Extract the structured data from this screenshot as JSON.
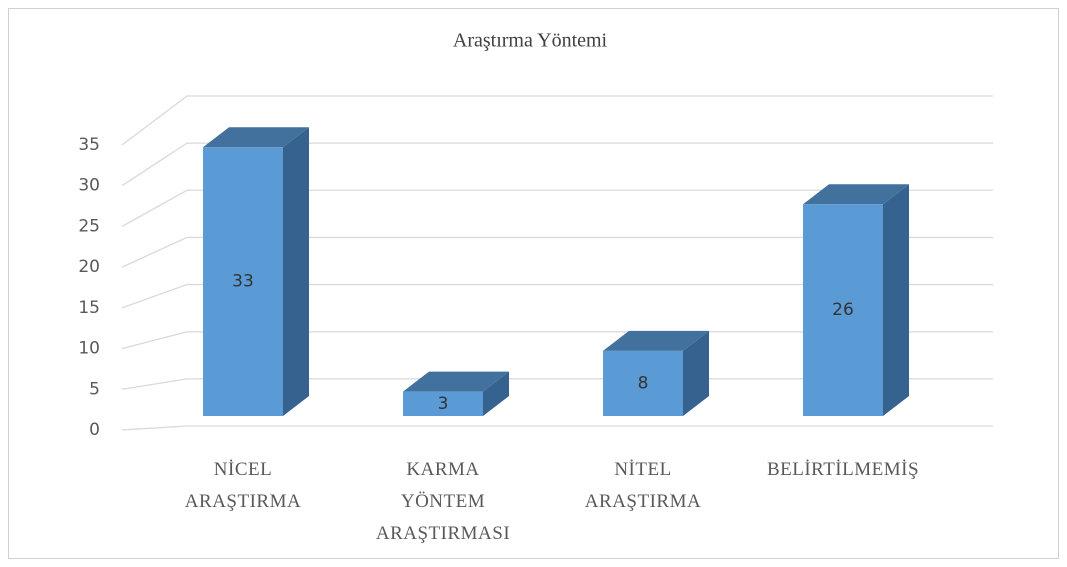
{
  "chart_data": {
    "type": "bar3d",
    "title": "Araştırma Yöntemi",
    "categories": [
      "NİCEL ARAŞTIRMA",
      "KARMA YÖNTEM ARAŞTIRMASI",
      "NİTEL ARAŞTIRMA",
      "BELİRTİLMEMİŞ"
    ],
    "values": [
      33,
      3,
      8,
      26
    ],
    "color": "#5b9bd5",
    "ylim": [
      0,
      35
    ],
    "yticks": [
      0,
      5,
      10,
      15,
      20,
      25,
      30,
      35
    ],
    "grid": true
  }
}
